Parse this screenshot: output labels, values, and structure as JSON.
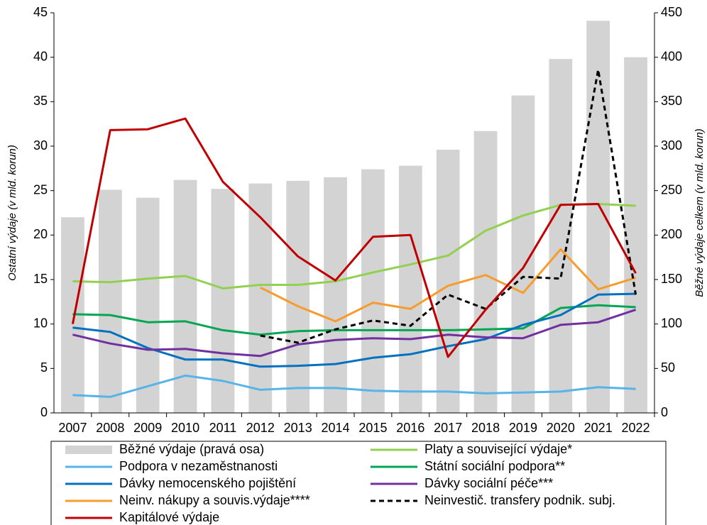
{
  "chart_data": {
    "type": "combo",
    "categories": [
      "2007",
      "2008",
      "2009",
      "2010",
      "2011",
      "2012",
      "2013",
      "2014",
      "2015",
      "2016",
      "2017",
      "2018",
      "2019",
      "2020",
      "2021",
      "2022"
    ],
    "y_label": "Ostatní výdaje (v mld. korun)",
    "y2_label": "Běžné výdaje celkem (v mld. korun)",
    "ylim": [
      0,
      45
    ],
    "yticks": [
      0,
      5,
      10,
      15,
      20,
      25,
      30,
      35,
      40,
      45
    ],
    "y2lim": [
      0,
      450
    ],
    "y2ticks": [
      0,
      50,
      100,
      150,
      200,
      250,
      300,
      350,
      400,
      450
    ],
    "legend": "bottom",
    "series": [
      {
        "name": "Běžné výdaje (pravá osa)",
        "type": "bar",
        "axis": "y2",
        "color": "#d3d3d3",
        "values": [
          220,
          251,
          242,
          262,
          252,
          258,
          261,
          265,
          274,
          278,
          296,
          317,
          357,
          398,
          441,
          400
        ]
      },
      {
        "name": "Platy a související výdaje*",
        "type": "line",
        "color": "#92d050",
        "values": [
          14.8,
          14.7,
          15.1,
          15.4,
          14.0,
          14.4,
          14.4,
          14.8,
          15.8,
          16.7,
          17.7,
          20.5,
          22.2,
          23.4,
          23.5,
          23.3
        ]
      },
      {
        "name": "Podpora v nezaměstnanosti",
        "type": "line",
        "color": "#56b4e9",
        "values": [
          2.0,
          1.8,
          3.0,
          4.2,
          3.6,
          2.6,
          2.8,
          2.8,
          2.5,
          2.4,
          2.4,
          2.2,
          2.3,
          2.4,
          2.9,
          2.7
        ]
      },
      {
        "name": "Státní sociální podpora**",
        "type": "line",
        "color": "#00a651",
        "values": [
          11.1,
          11.0,
          10.2,
          10.3,
          9.3,
          8.8,
          9.2,
          9.3,
          9.3,
          9.3,
          9.3,
          9.4,
          9.5,
          11.8,
          12.1,
          11.9
        ]
      },
      {
        "name": "Dávky nemocenského pojištění",
        "type": "line",
        "color": "#0070c0",
        "values": [
          9.6,
          9.1,
          7.3,
          6.0,
          6.0,
          5.2,
          5.3,
          5.5,
          6.2,
          6.6,
          7.5,
          8.3,
          9.9,
          11.0,
          13.3,
          13.4
        ]
      },
      {
        "name": "Dávky sociální péče***",
        "type": "line",
        "color": "#7030a0",
        "values": [
          8.8,
          7.8,
          7.1,
          7.2,
          6.7,
          6.4,
          7.7,
          8.2,
          8.4,
          8.3,
          8.8,
          8.5,
          8.4,
          9.9,
          10.2,
          11.6
        ]
      },
      {
        "name": "Neinv. nákupy a souvis.výdaje****",
        "type": "line",
        "color": "#f79c2c",
        "values": [
          null,
          null,
          null,
          null,
          null,
          14.1,
          12.0,
          10.3,
          12.4,
          11.7,
          14.3,
          15.5,
          13.5,
          18.4,
          13.9,
          15.2
        ]
      },
      {
        "name": "Neinvestič. transfery podnik. subj.",
        "type": "line",
        "color": "#000000",
        "dashed": true,
        "values": [
          null,
          null,
          null,
          null,
          null,
          8.7,
          7.9,
          9.4,
          10.4,
          9.8,
          13.3,
          11.7,
          15.3,
          15.1,
          38.6,
          13.3
        ]
      },
      {
        "name": "Kapitálové výdaje",
        "type": "line",
        "color": "#c00000",
        "values": [
          10.0,
          31.8,
          31.9,
          33.1,
          26.0,
          22.0,
          17.6,
          14.9,
          19.8,
          20.0,
          6.3,
          11.6,
          16.3,
          23.4,
          23.5,
          15.7
        ]
      }
    ]
  }
}
